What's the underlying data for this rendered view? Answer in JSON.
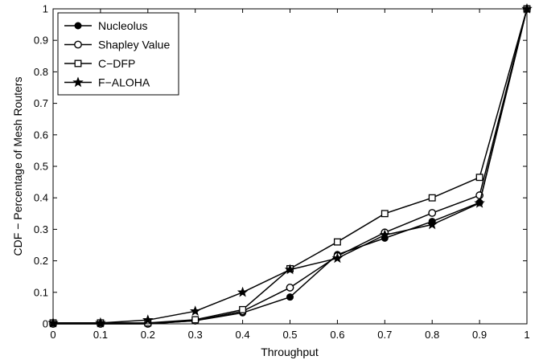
{
  "chart_data": {
    "type": "line",
    "title": "",
    "xlabel": "Throughput",
    "ylabel": "CDF − Percentage of Mesh Routers",
    "xlim": [
      0,
      1
    ],
    "ylim": [
      0,
      1
    ],
    "xticks": [
      0,
      0.1,
      0.2,
      0.3,
      0.4,
      0.5,
      0.6,
      0.7,
      0.8,
      0.9,
      1
    ],
    "yticks": [
      0,
      0.1,
      0.2,
      0.3,
      0.4,
      0.5,
      0.6,
      0.7,
      0.8,
      0.9,
      1
    ],
    "xtick_labels": [
      "0",
      "0.1",
      "0.2",
      "0.3",
      "0.4",
      "0.5",
      "0.6",
      "0.7",
      "0.8",
      "0.9",
      "1"
    ],
    "ytick_labels": [
      "0",
      "0.1",
      "0.2",
      "0.3",
      "0.4",
      "0.5",
      "0.6",
      "0.7",
      "0.8",
      "0.9",
      "1"
    ],
    "grid": false,
    "legend_position": "top-left",
    "x": [
      0,
      0.1,
      0.2,
      0.3,
      0.4,
      0.5,
      0.6,
      0.7,
      0.8,
      0.9,
      1
    ],
    "series": [
      {
        "name": "Nucleolus",
        "marker": "filled-circle",
        "color": "#000000",
        "values": [
          0,
          0,
          0,
          0.01,
          0.035,
          0.085,
          0.22,
          0.272,
          0.325,
          0.385,
          1
        ]
      },
      {
        "name": "Shapley Value",
        "marker": "open-circle",
        "color": "#000000",
        "values": [
          0,
          0,
          0,
          0.01,
          0.04,
          0.115,
          0.215,
          0.29,
          0.352,
          0.408,
          1
        ]
      },
      {
        "name": "C−DFP",
        "marker": "open-square",
        "color": "#000000",
        "values": [
          0.003,
          0.003,
          0.003,
          0.013,
          0.045,
          0.175,
          0.26,
          0.35,
          0.4,
          0.465,
          1
        ]
      },
      {
        "name": "F−ALOHA",
        "marker": "star",
        "color": "#000000",
        "values": [
          0.003,
          0.003,
          0.012,
          0.04,
          0.1,
          0.172,
          0.208,
          0.282,
          0.315,
          0.383,
          1
        ]
      }
    ]
  }
}
